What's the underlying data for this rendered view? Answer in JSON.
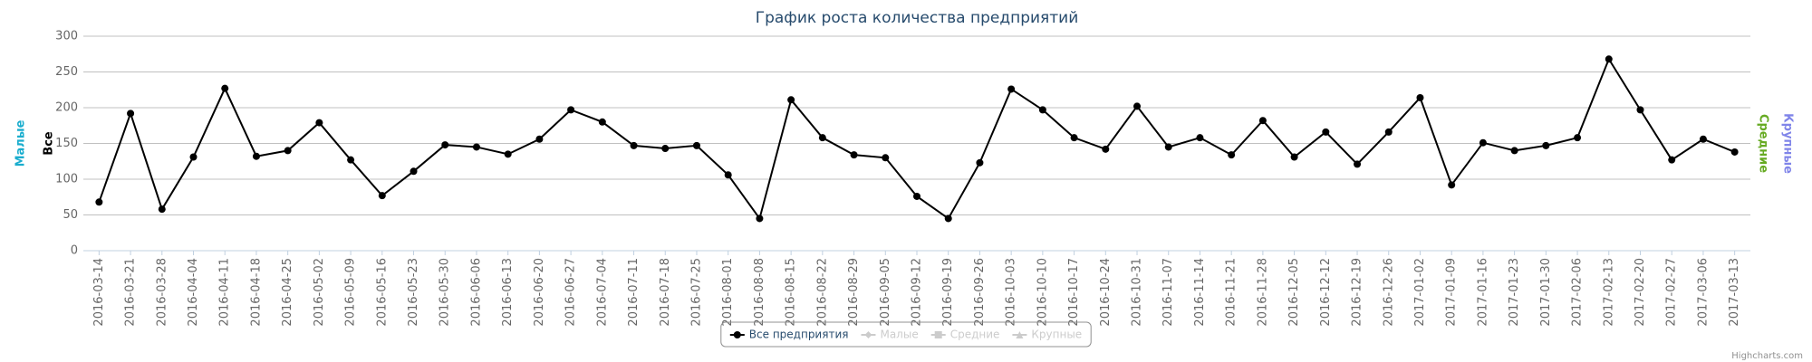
{
  "chart_data": {
    "type": "line",
    "title": "График роста количества предприятий",
    "categories": [
      "2016-03-14",
      "2016-03-21",
      "2016-03-28",
      "2016-04-04",
      "2016-04-11",
      "2016-04-18",
      "2016-04-25",
      "2016-05-02",
      "2016-05-09",
      "2016-05-16",
      "2016-05-23",
      "2016-05-30",
      "2016-06-06",
      "2016-06-13",
      "2016-06-20",
      "2016-06-27",
      "2016-07-04",
      "2016-07-11",
      "2016-07-18",
      "2016-07-25",
      "2016-08-01",
      "2016-08-08",
      "2016-08-15",
      "2016-08-22",
      "2016-08-29",
      "2016-09-05",
      "2016-09-12",
      "2016-09-19",
      "2016-09-26",
      "2016-10-03",
      "2016-10-10",
      "2016-10-17",
      "2016-10-24",
      "2016-10-31",
      "2016-11-07",
      "2016-11-14",
      "2016-11-21",
      "2016-11-28",
      "2016-12-05",
      "2016-12-12",
      "2016-12-19",
      "2016-12-26",
      "2017-01-02",
      "2017-01-09",
      "2017-01-16",
      "2017-01-23",
      "2017-01-30",
      "2017-02-06",
      "2017-02-13",
      "2017-02-20",
      "2017-02-27",
      "2017-03-06",
      "2017-03-13"
    ],
    "series": [
      {
        "name": "Все предприятия",
        "color": "#000000",
        "symbol": "circle",
        "visible": true,
        "values": [
          68,
          192,
          58,
          131,
          227,
          132,
          140,
          179,
          127,
          77,
          111,
          148,
          145,
          135,
          156,
          197,
          180,
          147,
          143,
          147,
          106,
          45,
          211,
          158,
          134,
          130,
          76,
          45,
          123,
          226,
          197,
          158,
          142,
          202,
          145,
          158,
          134,
          182,
          131,
          166,
          121,
          166,
          214,
          92,
          151,
          140,
          147,
          158,
          268,
          197,
          127,
          156,
          138
        ]
      },
      {
        "name": "Малые",
        "color": "#cccccc",
        "symbol": "diamond",
        "visible": false
      },
      {
        "name": "Средние",
        "color": "#cccccc",
        "symbol": "square",
        "visible": false
      },
      {
        "name": "Крупные",
        "color": "#cccccc",
        "symbol": "triangle",
        "visible": false
      }
    ],
    "ylim": [
      0,
      300
    ],
    "yticks": [
      0,
      50,
      100,
      150,
      200,
      250,
      300
    ],
    "grid": true,
    "y_axis_titles": [
      {
        "text": "Малые",
        "color": "#1aadce",
        "side": "left"
      },
      {
        "text": "Все",
        "color": "#000000",
        "side": "left"
      },
      {
        "text": "Средние",
        "color": "#66aa22",
        "side": "right"
      },
      {
        "text": "Крупные",
        "color": "#8085e9",
        "side": "right"
      }
    ],
    "legend": "bottom",
    "credits": "Highcharts.com"
  }
}
